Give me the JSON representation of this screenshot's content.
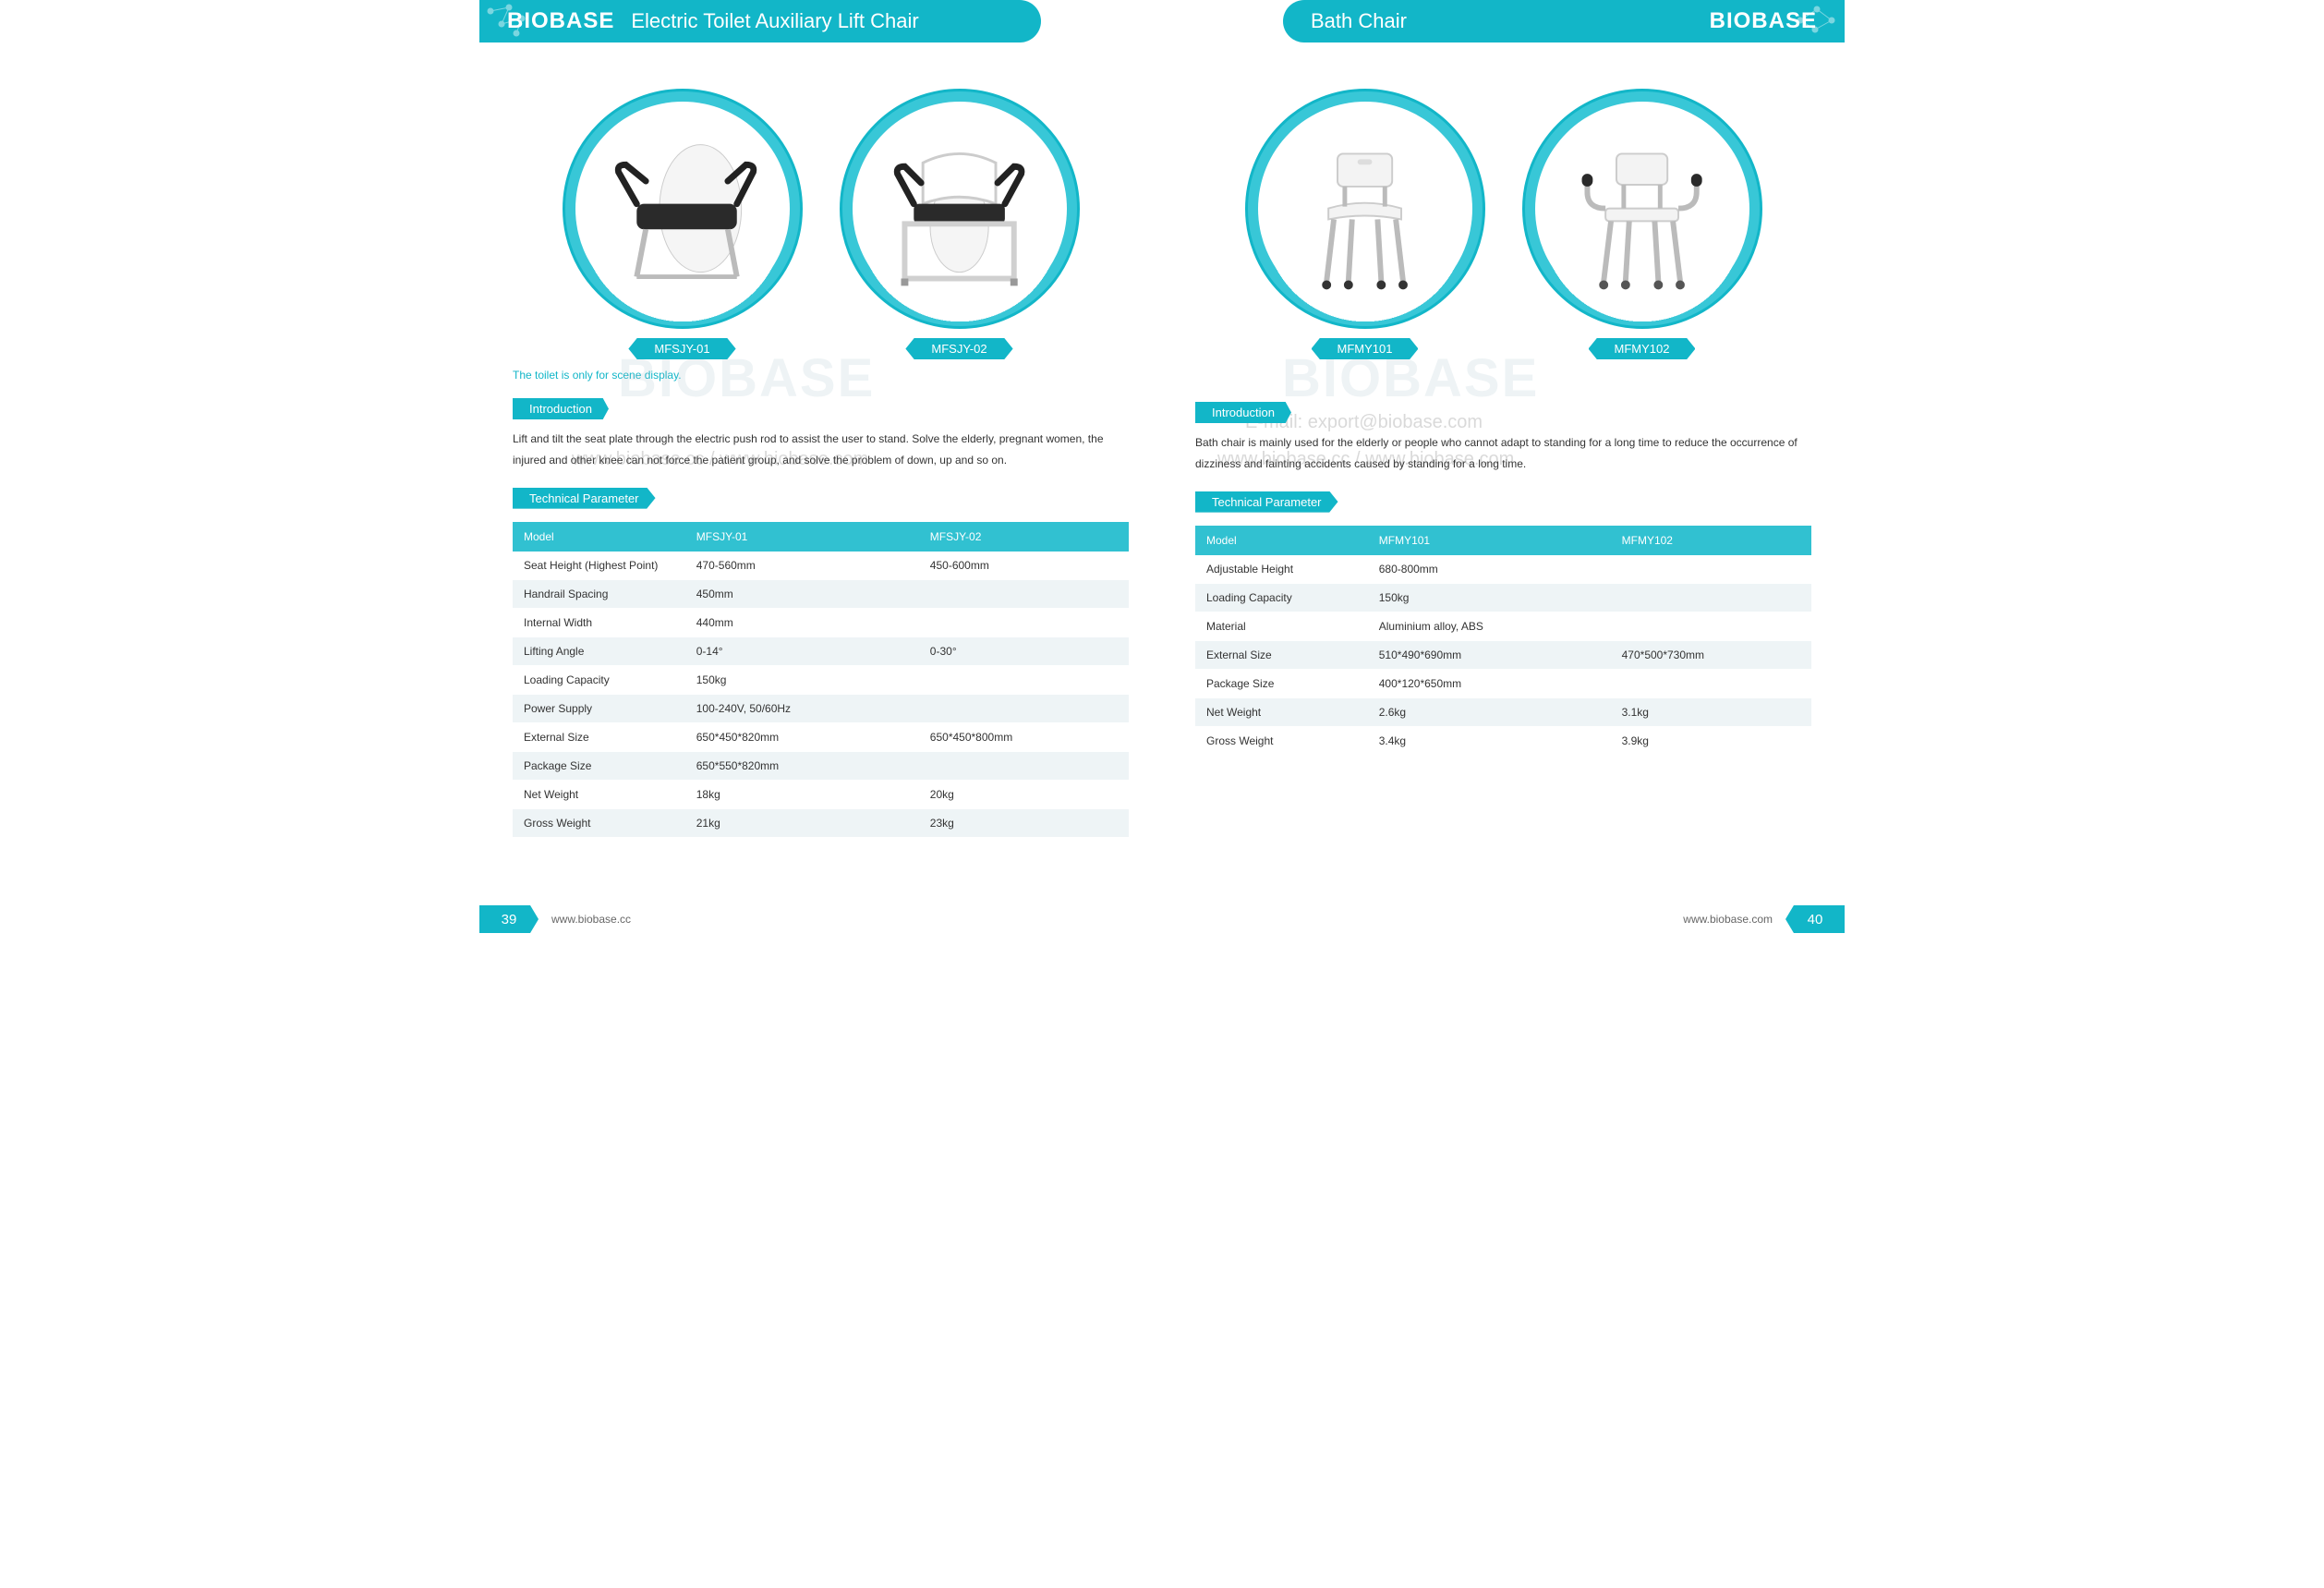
{
  "brand": "BIOBASE",
  "colors": {
    "primary": "#12b6c8",
    "primary_light": "#31c1d1",
    "row_alt": "#eef4f6",
    "text": "#333333"
  },
  "watermarks": {
    "brand": "BIOBASE",
    "url_combo": "www.biobase.cc / www.biobase.com",
    "email": "E-mail: export@biobase.com"
  },
  "left": {
    "page_number": "39",
    "footer_url": "www.biobase.cc",
    "title": "Electric Toilet Auxiliary Lift Chair",
    "note": "The toilet is only for scene display.",
    "products": [
      {
        "model": "MFSJY-01"
      },
      {
        "model": "MFSJY-02"
      }
    ],
    "intro_label": "Introduction",
    "intro_text": "Lift and tilt the seat plate through the electric push rod to assist the user to stand. Solve the elderly, pregnant women, the injured and other knee can not force the patient group, and solve the problem of down, up and so on.",
    "tech_label": "Technical Parameter",
    "table": {
      "columns": [
        "Model",
        "MFSJY-01",
        "MFSJY-02"
      ],
      "rows": [
        [
          "Seat Height (Highest Point)",
          "470-560mm",
          "450-600mm"
        ],
        [
          "Handrail Spacing",
          "450mm",
          ""
        ],
        [
          "Internal Width",
          "440mm",
          ""
        ],
        [
          "Lifting Angle",
          "0-14°",
          "0-30°"
        ],
        [
          "Loading Capacity",
          "150kg",
          ""
        ],
        [
          "Power Supply",
          "100-240V, 50/60Hz",
          ""
        ],
        [
          "External Size",
          "650*450*820mm",
          "650*450*800mm"
        ],
        [
          "Package Size",
          "650*550*820mm",
          ""
        ],
        [
          "Net Weight",
          "18kg",
          "20kg"
        ],
        [
          "Gross Weight",
          "21kg",
          "23kg"
        ]
      ]
    }
  },
  "right": {
    "page_number": "40",
    "footer_url": "www.biobase.com",
    "title": "Bath Chair",
    "products": [
      {
        "model": "MFMY101"
      },
      {
        "model": "MFMY102"
      }
    ],
    "intro_label": "Introduction",
    "intro_text": "Bath chair is mainly used for the elderly or people who cannot adapt to standing for a long time to reduce the occurrence of dizziness and fainting accidents caused by standing for a long time.",
    "tech_label": "Technical Parameter",
    "table": {
      "columns": [
        "Model",
        "MFMY101",
        "MFMY102"
      ],
      "rows": [
        [
          "Adjustable Height",
          "680-800mm",
          ""
        ],
        [
          "Loading Capacity",
          "150kg",
          ""
        ],
        [
          "Material",
          "Aluminium alloy, ABS",
          ""
        ],
        [
          "External Size",
          "510*490*690mm",
          "470*500*730mm"
        ],
        [
          "Package Size",
          "400*120*650mm",
          ""
        ],
        [
          "Net Weight",
          "2.6kg",
          "3.1kg"
        ],
        [
          "Gross Weight",
          "3.4kg",
          "3.9kg"
        ]
      ]
    }
  }
}
